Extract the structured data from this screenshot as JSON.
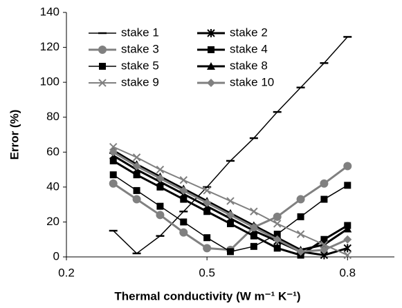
{
  "chart_data": {
    "type": "line",
    "xlabel": "Thermal conductivity (W m⁻¹ K⁻¹)",
    "ylabel": "Error (%)",
    "x": [
      0.3,
      0.35,
      0.4,
      0.45,
      0.5,
      0.55,
      0.6,
      0.65,
      0.7,
      0.75,
      0.8
    ],
    "xlim": [
      0.2,
      0.9
    ],
    "xticks": [
      0.2,
      0.5,
      0.8
    ],
    "ylim": [
      0,
      140
    ],
    "yticks": [
      0,
      20,
      40,
      60,
      80,
      100,
      120,
      140
    ],
    "grid": false,
    "legend": "upper left",
    "series": [
      {
        "name": "stake 1",
        "color": "#000000",
        "marker": "dash",
        "line_width": 1.5,
        "values": [
          15,
          2,
          12,
          26,
          40,
          55,
          68,
          83,
          97,
          111,
          126
        ]
      },
      {
        "name": "stake 2",
        "color": "#000000",
        "marker": "star",
        "line_width": 3,
        "values": [
          58,
          50,
          43,
          36,
          29,
          22,
          15,
          9,
          3,
          1,
          5
        ]
      },
      {
        "name": "stake 3",
        "color": "#808080",
        "marker": "circle",
        "line_width": 3,
        "values": [
          42,
          33,
          24,
          14,
          5,
          4,
          17,
          23,
          33,
          42,
          52
        ]
      },
      {
        "name": "stake 4",
        "color": "#000000",
        "marker": "square",
        "line_width": 3,
        "values": [
          55,
          47,
          40,
          33,
          26,
          19,
          12,
          5,
          1,
          10,
          18
        ]
      },
      {
        "name": "stake 5",
        "color": "#000000",
        "marker": "square",
        "line_width": 1.5,
        "values": [
          47,
          38,
          29,
          20,
          11,
          3,
          6,
          13,
          23,
          33,
          41
        ]
      },
      {
        "name": "stake 8",
        "color": "#000000",
        "marker": "triangle",
        "line_width": 3,
        "values": [
          61,
          53,
          46,
          39,
          32,
          25,
          18,
          11,
          4,
          7,
          16
        ]
      },
      {
        "name": "stake 9",
        "color": "#808080",
        "marker": "x",
        "line_width": 2,
        "values": [
          63,
          57,
          50,
          44,
          38,
          32,
          26,
          19,
          13,
          7,
          1
        ]
      },
      {
        "name": "stake 10",
        "color": "#808080",
        "marker": "diamond",
        "line_width": 3,
        "values": [
          60,
          52,
          45,
          38,
          31,
          24,
          17,
          10,
          3,
          4,
          10
        ]
      }
    ]
  }
}
